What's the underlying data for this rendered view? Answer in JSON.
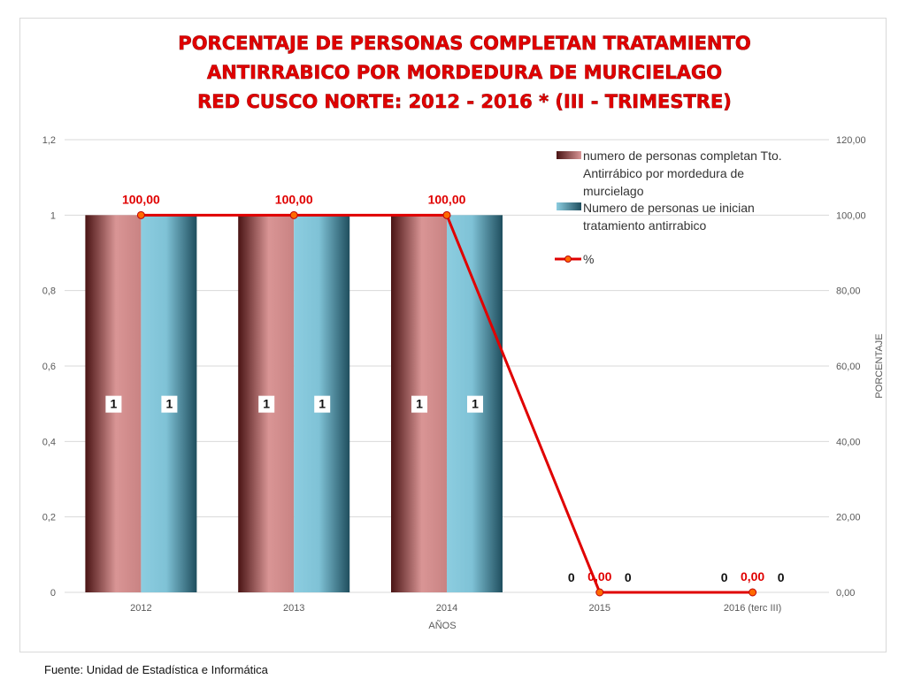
{
  "chart_data": {
    "type": "bar",
    "title_lines": [
      "PORCENTAJE DE PERSONAS COMPLETAN TRATAMIENTO",
      "ANTIRRABICO POR MORDEDURA DE MURCIELAGO",
      "RED CUSCO NORTE: 2012 - 2016 * (III - TRIMESTRE)"
    ],
    "xlabel": "AÑOS",
    "ylabel_right": "PORCENTAJE",
    "categories": [
      "2012",
      "2013",
      "2014",
      "2015",
      "2016 (terc III)"
    ],
    "ylim": [
      0,
      1.2
    ],
    "y_ticks": [
      "0",
      "0,2",
      "0,4",
      "0,6",
      "0,8",
      "1",
      "1,2"
    ],
    "y2lim": [
      0,
      120
    ],
    "y2_ticks": [
      "0,00",
      "20,00",
      "40,00",
      "60,00",
      "80,00",
      "100,00",
      "120,00"
    ],
    "series": [
      {
        "name": "numero  de  personas completan Tto. Antirrábico por mordedura de murcielago",
        "kind": "bar",
        "axis": "left",
        "values": [
          1,
          1,
          1,
          0,
          0
        ],
        "labels": [
          "1",
          "1",
          "1",
          "0",
          "0"
        ],
        "color": "#c48080"
      },
      {
        "name": "Numero de personas ue inician tratamiento antirrabico",
        "kind": "bar",
        "axis": "left",
        "values": [
          1,
          1,
          1,
          0,
          0
        ],
        "labels": [
          "1",
          "1",
          "1",
          "0",
          "0"
        ],
        "color": "#6fb3c8"
      },
      {
        "name": "%",
        "kind": "line",
        "axis": "right",
        "values": [
          100,
          100,
          100,
          0,
          0
        ],
        "labels": [
          "100,00",
          "100,00",
          "100,00",
          "0,00",
          "0,00"
        ],
        "color": "#e00000"
      }
    ],
    "legend_position": "top-right",
    "grid": true
  },
  "source_note": "Fuente: Unidad de Estadística e Informática"
}
